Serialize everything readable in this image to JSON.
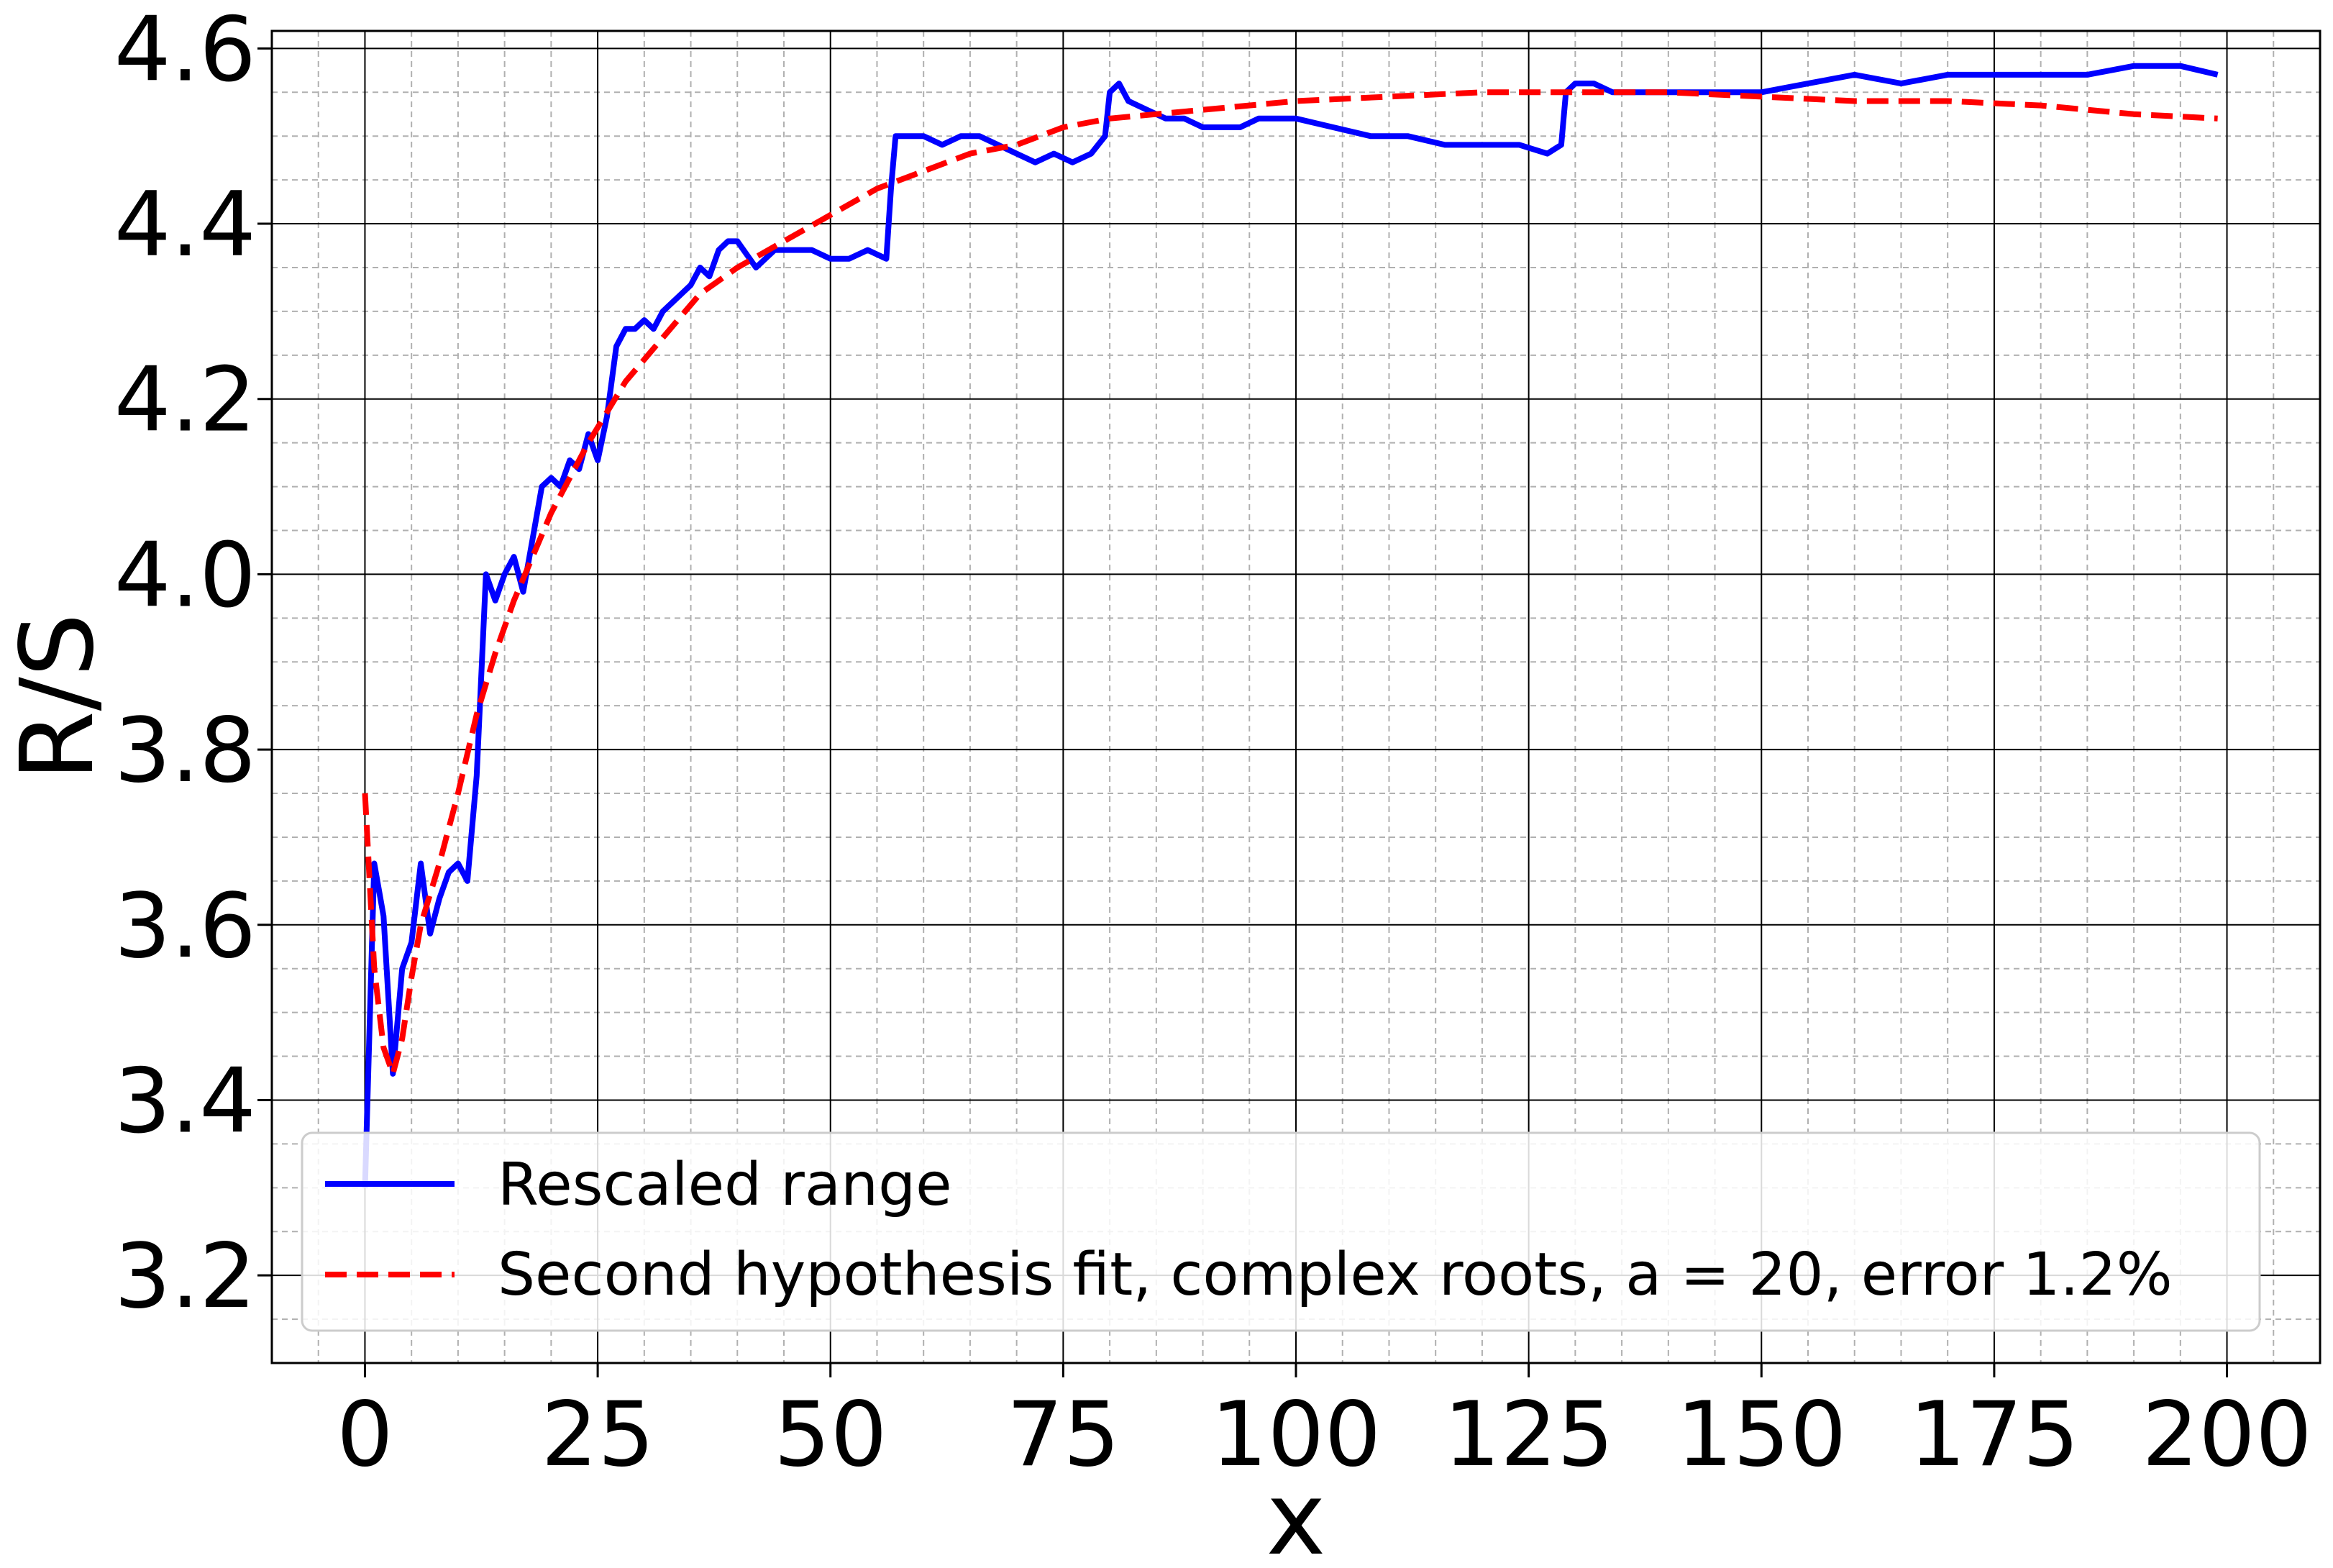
{
  "chart_data": {
    "type": "line",
    "xlabel": "x",
    "ylabel": "R/S",
    "xlim": [
      -10,
      210
    ],
    "ylim": [
      3.1,
      4.62
    ],
    "x_ticks": [
      0,
      25,
      50,
      75,
      100,
      125,
      150,
      175,
      200
    ],
    "y_ticks": [
      3.2,
      3.4,
      3.6,
      3.8,
      4.0,
      4.2,
      4.4,
      4.6
    ],
    "x_tick_labels": [
      "0",
      "25",
      "50",
      "75",
      "100",
      "125",
      "150",
      "175",
      "200"
    ],
    "y_tick_labels": [
      "3.2",
      "3.4",
      "3.6",
      "3.8",
      "4.0",
      "4.2",
      "4.4",
      "4.6"
    ],
    "grid": true,
    "legend_position": "lower-center",
    "series": [
      {
        "name": "Rescaled range",
        "color": "#0000ff",
        "style": "solid",
        "x": [
          0,
          1,
          2,
          3,
          4,
          5,
          6,
          7,
          8,
          9,
          10,
          11,
          12,
          13,
          14,
          15,
          16,
          17,
          18,
          19,
          20,
          21,
          22,
          23,
          24,
          25,
          26,
          27,
          28,
          29,
          30,
          31,
          32,
          33,
          34,
          35,
          36,
          37,
          38,
          39,
          40,
          42,
          44,
          46,
          48,
          50,
          52,
          54,
          56,
          56.5,
          57,
          60,
          62,
          64,
          66,
          68,
          70,
          72,
          74,
          76,
          78,
          79.5,
          80,
          81,
          82,
          84,
          86,
          88,
          90,
          92,
          94,
          96,
          98,
          100,
          104,
          108,
          112,
          116,
          120,
          124,
          127,
          128.5,
          129,
          130,
          132,
          134,
          136,
          140,
          145,
          150,
          155,
          160,
          165,
          170,
          175,
          180,
          185,
          190,
          195,
          199
        ],
        "y": [
          3.3,
          3.67,
          3.61,
          3.43,
          3.55,
          3.58,
          3.67,
          3.59,
          3.63,
          3.66,
          3.67,
          3.65,
          3.77,
          4.0,
          3.97,
          4.0,
          4.02,
          3.98,
          4.04,
          4.1,
          4.11,
          4.1,
          4.13,
          4.12,
          4.16,
          4.13,
          4.18,
          4.26,
          4.28,
          4.28,
          4.29,
          4.28,
          4.3,
          4.31,
          4.32,
          4.33,
          4.35,
          4.34,
          4.37,
          4.38,
          4.38,
          4.35,
          4.37,
          4.37,
          4.37,
          4.36,
          4.36,
          4.37,
          4.36,
          4.44,
          4.5,
          4.5,
          4.49,
          4.5,
          4.5,
          4.49,
          4.48,
          4.47,
          4.48,
          4.47,
          4.48,
          4.5,
          4.55,
          4.56,
          4.54,
          4.53,
          4.52,
          4.52,
          4.51,
          4.51,
          4.51,
          4.52,
          4.52,
          4.52,
          4.51,
          4.5,
          4.5,
          4.49,
          4.49,
          4.49,
          4.48,
          4.49,
          4.55,
          4.56,
          4.56,
          4.55,
          4.55,
          4.55,
          4.55,
          4.55,
          4.56,
          4.57,
          4.56,
          4.57,
          4.57,
          4.57,
          4.57,
          4.58,
          4.58,
          4.57
        ]
      },
      {
        "name": "Second hypothesis fit, complex roots, a = 20, error 1.2%",
        "color": "#ff0000",
        "style": "dashed",
        "x": [
          0,
          1,
          2,
          3,
          4,
          5,
          6,
          8,
          10,
          12,
          14,
          16,
          18,
          20,
          24,
          28,
          32,
          36,
          40,
          45,
          50,
          55,
          60,
          65,
          70,
          75,
          80,
          85,
          90,
          100,
          110,
          120,
          130,
          140,
          150,
          160,
          170,
          180,
          190,
          199
        ],
        "y": [
          3.75,
          3.55,
          3.46,
          3.43,
          3.47,
          3.54,
          3.6,
          3.67,
          3.75,
          3.84,
          3.91,
          3.97,
          4.02,
          4.07,
          4.15,
          4.22,
          4.27,
          4.32,
          4.35,
          4.38,
          4.41,
          4.44,
          4.46,
          4.48,
          4.49,
          4.51,
          4.52,
          4.525,
          4.53,
          4.54,
          4.545,
          4.55,
          4.55,
          4.55,
          4.545,
          4.54,
          4.54,
          4.535,
          4.525,
          4.52
        ]
      }
    ]
  }
}
